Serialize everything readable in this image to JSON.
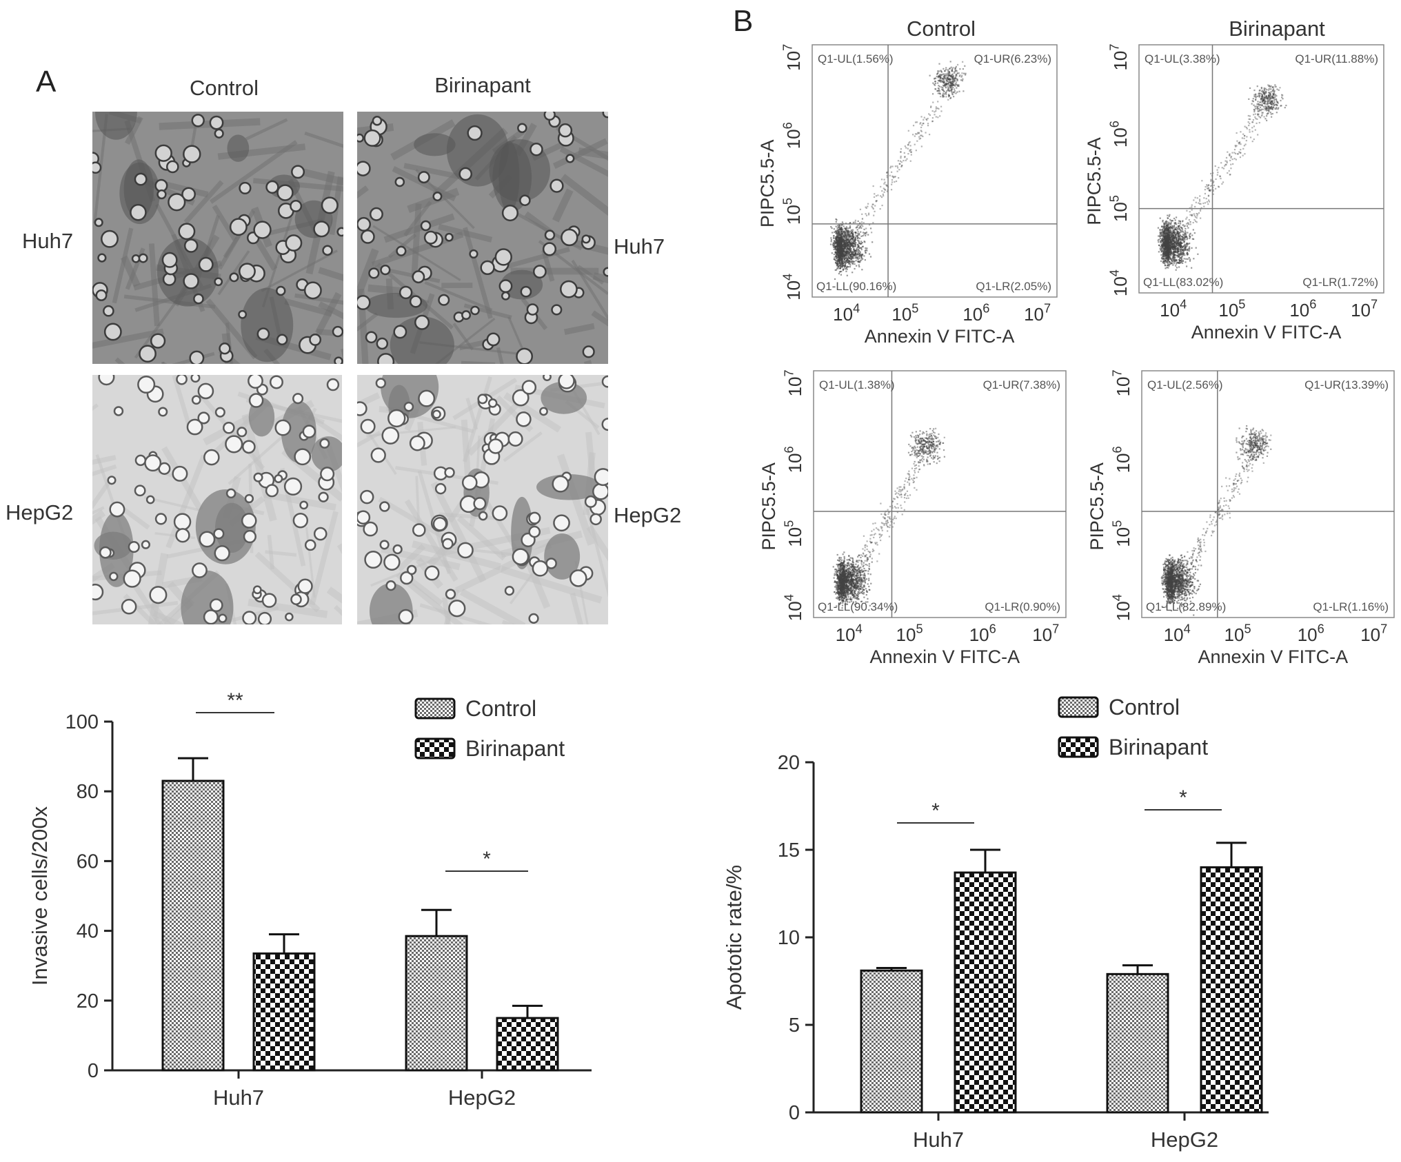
{
  "panel_a": {
    "letter": "A",
    "col_headers": [
      "Control",
      "Birinapant"
    ],
    "row_labels_left": [
      "Huh7",
      "HepG2"
    ],
    "row_labels_right": [
      "Huh7",
      "HepG2"
    ]
  },
  "panel_b": {
    "letter": "B",
    "col_headers": [
      "Control",
      "Birinapant"
    ],
    "flow_axis": {
      "x_label": "Annexin V FITC-A",
      "y_label": "PIPC5.5-A",
      "ticks": [
        "10^4",
        "10^5",
        "10^6",
        "10^7"
      ]
    },
    "flow_plots": [
      {
        "row": "Huh7",
        "group": "Control",
        "UL": "Q1-UL(1.56%)",
        "UR": "Q1-UR(6.23%)",
        "LL": "Q1-LL(90.16%)",
        "LR": "Q1-LR(2.05%)"
      },
      {
        "row": "Huh7",
        "group": "Birinapant",
        "UL": "Q1-UL(3.38%)",
        "UR": "Q1-UR(11.88%)",
        "LL": "Q1-LL(83.02%)",
        "LR": "Q1-LR(1.72%)"
      },
      {
        "row": "HepG2",
        "group": "Control",
        "UL": "Q1-UL(1.38%)",
        "UR": "Q1-UR(7.38%)",
        "LL": "Q1-LL(90.34%)",
        "LR": "Q1-LR(0.90%)"
      },
      {
        "row": "HepG2",
        "group": "Birinapant",
        "UL": "Q1-UL(2.56%)",
        "UR": "Q1-UR(13.39%)",
        "LL": "Q1-LL(82.89%)",
        "LR": "Q1-LR(1.16%)"
      }
    ]
  },
  "chart_data": [
    {
      "type": "bar",
      "categories": [
        "Huh7",
        "HepG2"
      ],
      "series": [
        {
          "name": "Control",
          "values": [
            83,
            38.5
          ],
          "errors": [
            6.5,
            7.5
          ]
        },
        {
          "name": "Birinapant",
          "values": [
            33.5,
            15
          ],
          "errors": [
            5.5,
            3.5
          ]
        }
      ],
      "ylabel": "Invasive cells/200x",
      "xlabel": "",
      "ylim": [
        0,
        100
      ],
      "yticks": [
        0,
        20,
        40,
        60,
        80,
        100
      ],
      "significance": [
        "**",
        "*"
      ],
      "legend": "top-right"
    },
    {
      "type": "bar",
      "categories": [
        "Huh7",
        "HepG2"
      ],
      "series": [
        {
          "name": "Control",
          "values": [
            8.1,
            7.9
          ],
          "errors": [
            0.15,
            0.5
          ]
        },
        {
          "name": "Birinapant",
          "values": [
            13.7,
            14.0
          ],
          "errors": [
            1.3,
            1.4
          ]
        }
      ],
      "ylabel": "Apototic rate/%",
      "xlabel": "",
      "ylim": [
        0,
        20
      ],
      "yticks": [
        0,
        5,
        10,
        15,
        20
      ],
      "significance": [
        "*",
        "*"
      ],
      "legend": "top-center"
    }
  ]
}
